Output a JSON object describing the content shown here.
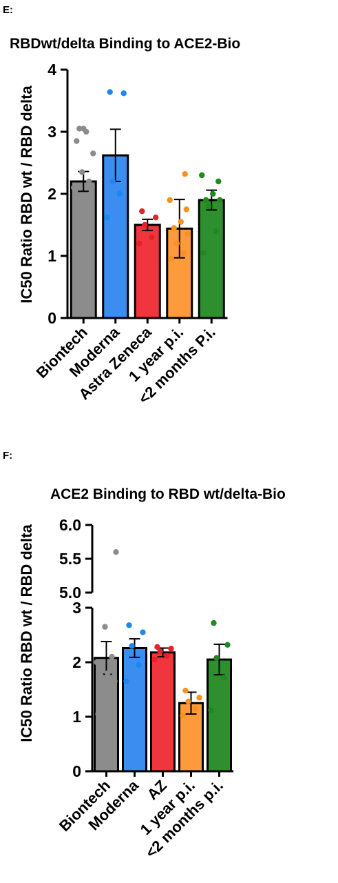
{
  "panels": [
    {
      "label": "E:"
    },
    {
      "label": "F:"
    }
  ],
  "chart_data": [
    {
      "type": "bar",
      "title": "RBDwt/delta Binding to ACE2-Bio",
      "ylabel": "IC50 Ratio RBD wt / RBD delta",
      "xlabel": "",
      "ylim": [
        0,
        4
      ],
      "yticks": [
        "0",
        "1",
        "2",
        "3",
        "4"
      ],
      "categories": [
        "Biontech",
        "Moderna",
        "Astra Zeneca",
        "1 year p.i.",
        "<2 months P.i."
      ],
      "colors": [
        "#8c8c8c",
        "#3b8ef0",
        "#f0353e",
        "#fc9a3c",
        "#2e8f2e"
      ],
      "dot_colors": [
        "#8c8c8c",
        "#1e88f0",
        "#e8202a",
        "#f7921e",
        "#1f8a1f"
      ],
      "values": [
        2.2,
        2.62,
        1.5,
        1.44,
        1.9
      ],
      "error": [
        0.16,
        0.42,
        0.09,
        0.47,
        0.16
      ],
      "points": [
        [
          1.3,
          1.4,
          1.55,
          1.7,
          1.85,
          1.95,
          2.0,
          2.1,
          2.2,
          2.35,
          2.65,
          2.85,
          3.0,
          3.05,
          3.05
        ],
        [
          1.62,
          2.0,
          2.2,
          3.62,
          3.64
        ],
        [
          1.2,
          1.3,
          1.5,
          1.62,
          1.72
        ],
        [
          0.95,
          1.05,
          1.2,
          1.35,
          1.45,
          1.55,
          1.75,
          1.9,
          2.32
        ],
        [
          1.05,
          1.4,
          1.8,
          1.9,
          1.9,
          2.0,
          2.2,
          2.3
        ]
      ]
    },
    {
      "type": "bar",
      "title": "ACE2 Binding to RBD wt/delta-Bio",
      "ylabel": "IC50 Ratio RBD wt / RBD delta",
      "xlabel": "",
      "ylim": [
        0,
        3
      ],
      "ylim_upper": [
        5.0,
        6.0
      ],
      "axis_break": true,
      "yticks": [
        "0",
        "1",
        "2",
        "3"
      ],
      "yticks_upper": [
        "5.0",
        "5.5",
        "6.0"
      ],
      "categories": [
        "Biontech",
        "Moderna",
        "AZ",
        "1 year p.i.",
        "<2 months p.i."
      ],
      "colors": [
        "#8c8c8c",
        "#3b8ef0",
        "#f0353e",
        "#fc9a3c",
        "#2e8f2e"
      ],
      "dot_colors": [
        "#8c8c8c",
        "#1e88f0",
        "#e8202a",
        "#f7921e",
        "#1f8a1f"
      ],
      "values": [
        2.08,
        2.26,
        2.18,
        1.25,
        2.05
      ],
      "error": [
        0.3,
        0.17,
        0.08,
        0.2,
        0.28
      ],
      "points": [
        [
          1.05,
          1.2,
          1.55,
          1.65,
          1.75,
          1.8,
          1.85,
          2.0,
          2.1,
          2.65,
          5.6
        ],
        [
          1.65,
          1.95,
          2.3,
          2.55,
          2.68
        ],
        [
          2.05,
          2.12,
          2.2,
          2.25,
          2.28
        ],
        [
          1.02,
          1.15,
          1.28,
          1.35,
          1.48
        ],
        [
          1.12,
          1.72,
          2.08,
          2.32,
          2.72
        ]
      ]
    }
  ]
}
